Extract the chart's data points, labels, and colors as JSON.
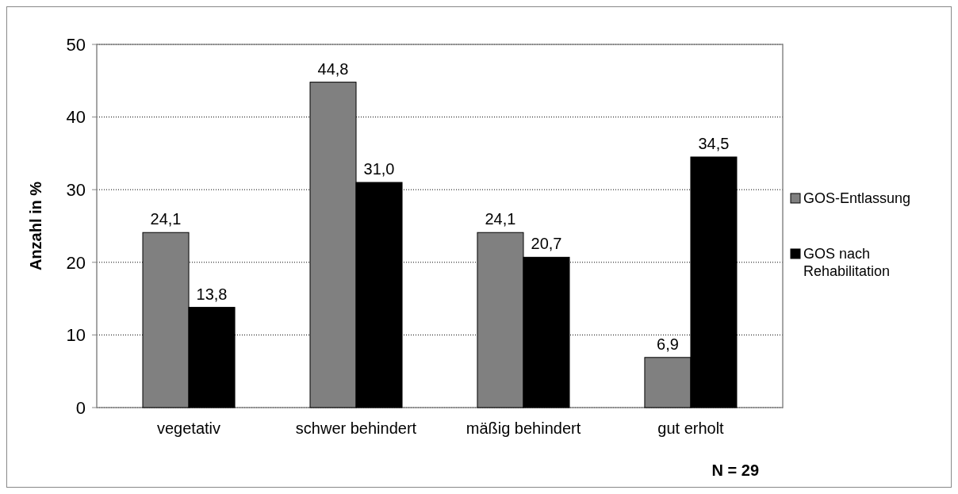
{
  "chart_data": {
    "type": "bar",
    "ylabel": "Anzahl in %",
    "categories": [
      "vegetativ",
      "schwer behindert",
      "mäßig behindert",
      "gut erholt"
    ],
    "series": [
      {
        "name": "GOS-Entlassung",
        "color": "#808080",
        "values": [
          24.1,
          44.8,
          24.1,
          6.9
        ],
        "value_labels": [
          "24,1",
          "44,8",
          "24,1",
          "6,9"
        ]
      },
      {
        "name": "GOS nach Rehabilitation",
        "color": "#000000",
        "values": [
          13.8,
          31.0,
          20.7,
          34.5
        ],
        "value_labels": [
          "13,8",
          "31,0",
          "20,7",
          "34,5"
        ]
      }
    ],
    "ylim": [
      0,
      50
    ],
    "yticks": [
      0,
      10,
      20,
      30,
      40,
      50
    ],
    "grid": "y",
    "legend": "right",
    "annotations": [
      "N = 29"
    ]
  }
}
